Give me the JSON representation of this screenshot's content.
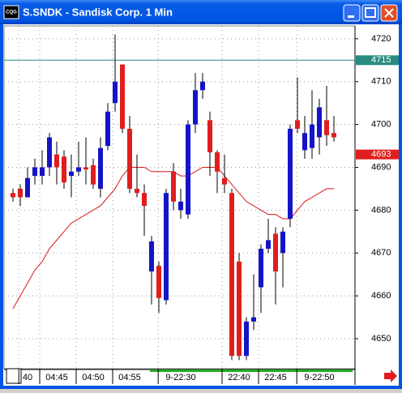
{
  "window": {
    "icon_text": "CQG"
  },
  "chart_data": {
    "type": "candlestick",
    "title": "S.SNDK - Sandisk Corp. 1 Min",
    "categories": [
      null,
      null,
      "40",
      null,
      null,
      null,
      "04:45",
      null,
      null,
      null,
      null,
      "04:50",
      null,
      null,
      null,
      null,
      "04:55",
      null,
      null,
      null,
      null,
      null,
      null,
      "9-22:30",
      null,
      null,
      null,
      null,
      null,
      null,
      null,
      "22:40",
      null,
      null,
      null,
      null,
      "22:45",
      null,
      null,
      null,
      null,
      null,
      "9-22:50",
      null,
      null
    ],
    "open": [
      4684,
      4685,
      4683,
      4688,
      4688,
      4690,
      4693,
      4692.5,
      4688,
      4689,
      4690,
      4690.5,
      4685,
      4695,
      4705,
      4714,
      4699,
      4685,
      4684,
      4665.7,
      4667,
      4659,
      4689,
      4680,
      4679,
      4700,
      4708,
      4701,
      4693.5,
      4687.5,
      4684,
      4668,
      4646,
      4654,
      4662,
      4671,
      4674.5,
      4670,
      4678,
      4701,
      4694,
      4694.5,
      4697,
      4701,
      4698
    ],
    "high": [
      4685,
      4686,
      4690,
      4692,
      4694,
      4698,
      4696,
      4694,
      4693,
      4696,
      4697,
      4692,
      4697,
      4705,
      4721,
      4714,
      4702,
      4693,
      4686,
      4674,
      4668,
      4685,
      4691,
      4685,
      4701,
      4712,
      4712,
      4703,
      4694,
      4693,
      4685,
      4670,
      4655,
      4665,
      4672,
      4678,
      4676,
      4676,
      4700,
      4711,
      4702,
      4708,
      4706,
      4709,
      4702
    ],
    "low": [
      4682,
      4681,
      4683,
      4686,
      4686,
      4688,
      4686,
      4685,
      4683,
      4688,
      4686,
      4685,
      4683,
      4694,
      4703,
      4698,
      4684,
      4683,
      4674,
      4658,
      4656,
      4658,
      4680,
      4678,
      4678,
      4698,
      4706,
      4688,
      4684,
      4684,
      4645,
      4645,
      4645,
      4652,
      4656,
      4670,
      4658,
      4662,
      4676,
      4698,
      4692,
      4692,
      4693,
      4695,
      4696
    ],
    "close": [
      4683,
      4683,
      4687.5,
      4690,
      4690,
      4697,
      4690,
      4686.5,
      4689,
      4690,
      4689.5,
      4686,
      4694.5,
      4703,
      4710,
      4699,
      4685,
      4684,
      4681,
      4672.7,
      4659.5,
      4684,
      4682,
      4682,
      4700,
      4708,
      4710,
      4693.5,
      4689,
      4686,
      4646,
      4646,
      4654,
      4655,
      4671,
      4673,
      4665.7,
      4675,
      4699,
      4699,
      4698,
      4700,
      4704,
      4697.5,
      4697
    ],
    "moving_average": [
      4657,
      4660,
      4663,
      4666,
      4668,
      4671,
      4673,
      4675,
      4677,
      4678,
      4679,
      4680,
      4681,
      4683,
      4685,
      4688,
      4690,
      4690,
      4690,
      4689,
      4689,
      4689,
      4689,
      4688,
      4688,
      4689,
      4690,
      4690,
      4690,
      4688,
      4686,
      4684,
      4682,
      4681,
      4680,
      4679,
      4679,
      4678,
      4678,
      4680,
      4682,
      4683,
      4684,
      4685,
      4685
    ],
    "up_color": "#1414c8",
    "down_color": "#e01e1e",
    "ma_color": "#d81818",
    "ylim": [
      4643,
      4723
    ],
    "yticks": [
      4650,
      4660,
      4670,
      4680,
      4690,
      4700,
      4710,
      4720
    ],
    "hline": 4715,
    "hline_color": "#2a8c80",
    "last_price": 4693,
    "grid": true
  }
}
